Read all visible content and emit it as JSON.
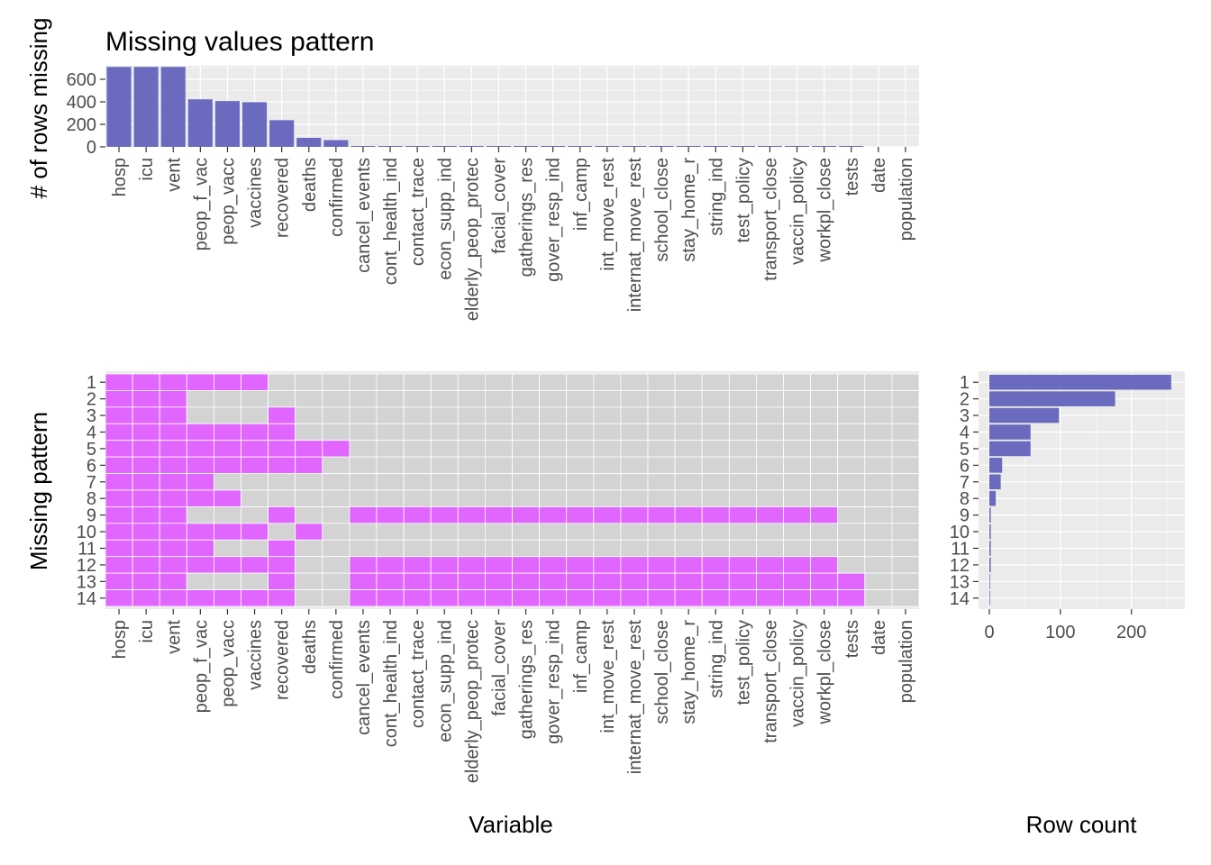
{
  "colors": {
    "bar": "#6a6abf",
    "missing": "#e066ff",
    "present": "#d3d3d3",
    "panel": "#ebebeb"
  },
  "chart_data": [
    {
      "type": "bar",
      "title": "Missing values pattern",
      "xlabel": "",
      "ylabel": "# of rows missing",
      "ylim": [
        0,
        720
      ],
      "yticks": [
        0,
        200,
        400,
        600
      ],
      "grid": true,
      "categories": [
        "hosp",
        "icu",
        "vent",
        "peop_f_vac",
        "peop_vacc",
        "vaccines",
        "recovered",
        "deaths",
        "confirmed",
        "cancel_events",
        "cont_health_ind",
        "contact_trace",
        "econ_supp_ind",
        "elderly_peop_protec",
        "facial_cover",
        "gatherings_res",
        "gover_resp_ind",
        "inf_camp",
        "int_move_rest",
        "internat_move_rest",
        "school_close",
        "stay_home_r",
        "string_ind",
        "test_policy",
        "transport_close",
        "vaccin_policy",
        "workpl_close",
        "tests",
        "date",
        "population"
      ],
      "values": [
        710,
        710,
        710,
        422,
        407,
        397,
        237,
        80,
        60,
        8,
        8,
        8,
        8,
        8,
        8,
        8,
        8,
        8,
        8,
        8,
        8,
        8,
        8,
        8,
        8,
        8,
        8,
        8,
        0,
        0
      ]
    },
    {
      "type": "heatmap",
      "xlabel": "Variable",
      "ylabel": "Missing pattern",
      "grid": true,
      "categories": [
        "hosp",
        "icu",
        "vent",
        "peop_f_vac",
        "peop_vacc",
        "vaccines",
        "recovered",
        "deaths",
        "confirmed",
        "cancel_events",
        "cont_health_ind",
        "contact_trace",
        "econ_supp_ind",
        "elderly_peop_protec",
        "facial_cover",
        "gatherings_res",
        "gover_resp_ind",
        "inf_camp",
        "int_move_rest",
        "internat_move_rest",
        "school_close",
        "stay_home_r",
        "string_ind",
        "test_policy",
        "transport_close",
        "vaccin_policy",
        "workpl_close",
        "tests",
        "date",
        "population"
      ],
      "patterns": [
        "1",
        "2",
        "3",
        "4",
        "5",
        "6",
        "7",
        "8",
        "9",
        "10",
        "11",
        "12",
        "13",
        "14"
      ],
      "missing": [
        [
          1,
          1,
          1,
          1,
          1,
          1,
          0,
          0,
          0,
          0,
          0,
          0,
          0,
          0,
          0,
          0,
          0,
          0,
          0,
          0,
          0,
          0,
          0,
          0,
          0,
          0,
          0,
          0,
          0,
          0
        ],
        [
          1,
          1,
          1,
          0,
          0,
          0,
          0,
          0,
          0,
          0,
          0,
          0,
          0,
          0,
          0,
          0,
          0,
          0,
          0,
          0,
          0,
          0,
          0,
          0,
          0,
          0,
          0,
          0,
          0,
          0
        ],
        [
          1,
          1,
          1,
          0,
          0,
          0,
          1,
          0,
          0,
          0,
          0,
          0,
          0,
          0,
          0,
          0,
          0,
          0,
          0,
          0,
          0,
          0,
          0,
          0,
          0,
          0,
          0,
          0,
          0,
          0
        ],
        [
          1,
          1,
          1,
          1,
          1,
          1,
          1,
          0,
          0,
          0,
          0,
          0,
          0,
          0,
          0,
          0,
          0,
          0,
          0,
          0,
          0,
          0,
          0,
          0,
          0,
          0,
          0,
          0,
          0,
          0
        ],
        [
          1,
          1,
          1,
          1,
          1,
          1,
          1,
          1,
          1,
          0,
          0,
          0,
          0,
          0,
          0,
          0,
          0,
          0,
          0,
          0,
          0,
          0,
          0,
          0,
          0,
          0,
          0,
          0,
          0,
          0
        ],
        [
          1,
          1,
          1,
          1,
          1,
          1,
          1,
          1,
          0,
          0,
          0,
          0,
          0,
          0,
          0,
          0,
          0,
          0,
          0,
          0,
          0,
          0,
          0,
          0,
          0,
          0,
          0,
          0,
          0,
          0
        ],
        [
          1,
          1,
          1,
          1,
          0,
          0,
          0,
          0,
          0,
          0,
          0,
          0,
          0,
          0,
          0,
          0,
          0,
          0,
          0,
          0,
          0,
          0,
          0,
          0,
          0,
          0,
          0,
          0,
          0,
          0
        ],
        [
          1,
          1,
          1,
          1,
          1,
          0,
          0,
          0,
          0,
          0,
          0,
          0,
          0,
          0,
          0,
          0,
          0,
          0,
          0,
          0,
          0,
          0,
          0,
          0,
          0,
          0,
          0,
          0,
          0,
          0
        ],
        [
          1,
          1,
          1,
          0,
          0,
          0,
          1,
          0,
          0,
          1,
          1,
          1,
          1,
          1,
          1,
          1,
          1,
          1,
          1,
          1,
          1,
          1,
          1,
          1,
          1,
          1,
          1,
          0,
          0,
          0
        ],
        [
          1,
          1,
          1,
          1,
          1,
          1,
          0,
          1,
          0,
          0,
          0,
          0,
          0,
          0,
          0,
          0,
          0,
          0,
          0,
          0,
          0,
          0,
          0,
          0,
          0,
          0,
          0,
          0,
          0,
          0
        ],
        [
          1,
          1,
          1,
          1,
          0,
          0,
          1,
          0,
          0,
          0,
          0,
          0,
          0,
          0,
          0,
          0,
          0,
          0,
          0,
          0,
          0,
          0,
          0,
          0,
          0,
          0,
          0,
          0,
          0,
          0
        ],
        [
          1,
          1,
          1,
          1,
          1,
          1,
          1,
          0,
          0,
          1,
          1,
          1,
          1,
          1,
          1,
          1,
          1,
          1,
          1,
          1,
          1,
          1,
          1,
          1,
          1,
          1,
          1,
          0,
          0,
          0
        ],
        [
          1,
          1,
          1,
          0,
          0,
          0,
          1,
          0,
          0,
          1,
          1,
          1,
          1,
          1,
          1,
          1,
          1,
          1,
          1,
          1,
          1,
          1,
          1,
          1,
          1,
          1,
          1,
          1,
          0,
          0
        ],
        [
          1,
          1,
          1,
          1,
          1,
          1,
          1,
          0,
          0,
          1,
          1,
          1,
          1,
          1,
          1,
          1,
          1,
          1,
          1,
          1,
          1,
          1,
          1,
          1,
          1,
          1,
          1,
          1,
          0,
          0
        ]
      ]
    },
    {
      "type": "bar",
      "orientation": "horizontal",
      "xlabel": "Row count",
      "ylabel": "",
      "xlim": [
        0,
        260
      ],
      "xticks": [
        0,
        100,
        200
      ],
      "grid": true,
      "categories": [
        "1",
        "2",
        "3",
        "4",
        "5",
        "6",
        "7",
        "8",
        "9",
        "10",
        "11",
        "12",
        "13",
        "14"
      ],
      "values": [
        256,
        177,
        98,
        58,
        58,
        18,
        16,
        9,
        2,
        2,
        2,
        2,
        1,
        1
      ]
    }
  ]
}
